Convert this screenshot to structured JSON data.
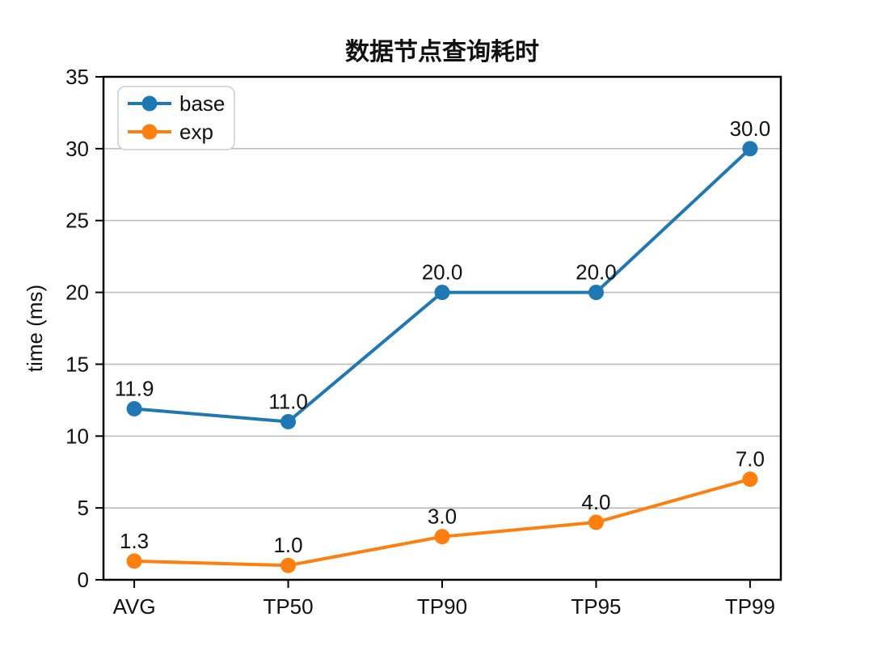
{
  "figure": {
    "background": "#ffffff"
  },
  "chart_data": {
    "type": "line",
    "title": "数据节点查询耗时",
    "xlabel": "",
    "ylabel": "time (ms)",
    "categories": [
      "AVG",
      "TP50",
      "TP90",
      "TP95",
      "TP99"
    ],
    "series": [
      {
        "name": "base",
        "color": "#1f77b4",
        "values": [
          11.9,
          11.0,
          20.0,
          20.0,
          30.0
        ],
        "point_labels": [
          "11.9",
          "11.0",
          "20.0",
          "20.0",
          "30.0"
        ]
      },
      {
        "name": "exp",
        "color": "#ff7f0e",
        "values": [
          1.3,
          1.0,
          3.0,
          4.0,
          7.0
        ],
        "point_labels": [
          "1.3",
          "1.0",
          "3.0",
          "4.0",
          "7.0"
        ]
      }
    ],
    "ylim": [
      0,
      35
    ],
    "yticks": [
      0,
      5,
      10,
      15,
      20,
      25,
      30,
      35
    ],
    "grid": "horizontal",
    "gridline_color": "#bdbdbd",
    "axis_color": "#000000",
    "legend_position": "upper left",
    "legend_border_color": "#cccccc",
    "legend_background": "#ffffff"
  }
}
